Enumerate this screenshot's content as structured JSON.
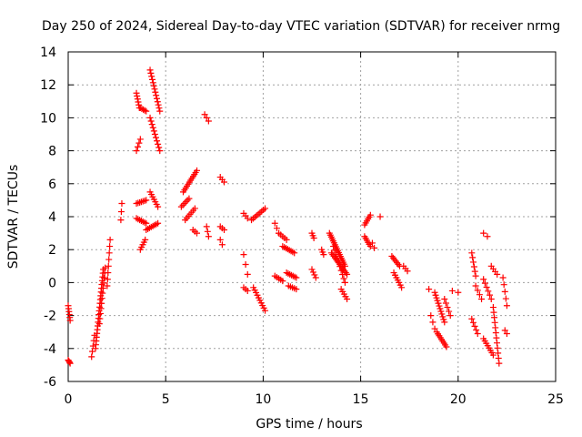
{
  "chart_data": {
    "type": "scatter",
    "title": "Day 250 of 2024, Sidereal Day-to-day VTEC variation (SDTVAR) for receiver nrmg",
    "xlabel": "GPS time / hours",
    "ylabel": "SDTVAR / TECUs",
    "xlim": [
      0,
      25
    ],
    "ylim": [
      -6,
      14
    ],
    "xticks": [
      0,
      5,
      10,
      15,
      20,
      25
    ],
    "yticks": [
      -6,
      -4,
      -2,
      0,
      2,
      4,
      6,
      8,
      10,
      12,
      14
    ],
    "xtick_labels": [
      "0",
      "5",
      "10",
      "15",
      "20",
      "25"
    ],
    "ytick_labels": [
      "-6",
      "-4",
      "-2",
      "0",
      "2",
      "4",
      "6",
      "8",
      "10",
      "12",
      "14"
    ],
    "grid": true,
    "marker": "+",
    "marker_color": "#ff0000",
    "series": [
      {
        "name": "SDTVAR",
        "segments": [
          {
            "x0": 0.0,
            "x1": 0.1,
            "y0": -1.4,
            "y1": -2.3,
            "n": 6
          },
          {
            "x0": 0.0,
            "x1": 0.1,
            "y0": -4.7,
            "y1": -4.9,
            "n": 4
          },
          {
            "x0": 1.2,
            "x1": 1.35,
            "y0": -4.5,
            "y1": -3.2,
            "n": 5
          },
          {
            "x0": 1.4,
            "x1": 1.8,
            "y0": -4.0,
            "y1": 0.8,
            "n": 22
          },
          {
            "x0": 1.6,
            "x1": 1.9,
            "y0": -2.5,
            "y1": 0.9,
            "n": 12
          },
          {
            "x0": 2.0,
            "x1": 2.15,
            "y0": -0.2,
            "y1": 2.6,
            "n": 8
          },
          {
            "x0": 2.7,
            "x1": 2.75,
            "y0": 3.8,
            "y1": 4.8,
            "n": 3
          },
          {
            "x0": 3.5,
            "x1": 3.65,
            "y0": 11.5,
            "y1": 10.6,
            "n": 6
          },
          {
            "x0": 3.7,
            "x1": 4.0,
            "y0": 10.6,
            "y1": 10.4,
            "n": 5
          },
          {
            "x0": 3.5,
            "x1": 3.7,
            "y0": 8.0,
            "y1": 8.7,
            "n": 4
          },
          {
            "x0": 3.5,
            "x1": 4.0,
            "y0": 4.8,
            "y1": 5.0,
            "n": 7
          },
          {
            "x0": 3.5,
            "x1": 4.0,
            "y0": 3.9,
            "y1": 3.6,
            "n": 7
          },
          {
            "x0": 3.7,
            "x1": 3.95,
            "y0": 2.0,
            "y1": 2.6,
            "n": 5
          },
          {
            "x0": 4.0,
            "x1": 4.6,
            "y0": 3.2,
            "y1": 3.6,
            "n": 8
          },
          {
            "x0": 4.2,
            "x1": 4.7,
            "y0": 12.9,
            "y1": 10.4,
            "n": 14
          },
          {
            "x0": 4.2,
            "x1": 4.7,
            "y0": 10.0,
            "y1": 8.0,
            "n": 11
          },
          {
            "x0": 4.2,
            "x1": 4.6,
            "y0": 5.5,
            "y1": 4.6,
            "n": 7
          },
          {
            "x0": 5.8,
            "x1": 6.2,
            "y0": 4.6,
            "y1": 5.1,
            "n": 6
          },
          {
            "x0": 5.9,
            "x1": 6.6,
            "y0": 5.5,
            "y1": 6.8,
            "n": 12
          },
          {
            "x0": 6.0,
            "x1": 6.5,
            "y0": 3.8,
            "y1": 4.5,
            "n": 7
          },
          {
            "x0": 6.4,
            "x1": 6.6,
            "y0": 3.2,
            "y1": 3.0,
            "n": 3
          },
          {
            "x0": 7.0,
            "x1": 7.2,
            "y0": 10.2,
            "y1": 9.8,
            "n": 3
          },
          {
            "x0": 7.1,
            "x1": 7.2,
            "y0": 3.4,
            "y1": 2.8,
            "n": 3
          },
          {
            "x0": 7.8,
            "x1": 8.0,
            "y0": 6.4,
            "y1": 6.1,
            "n": 3
          },
          {
            "x0": 7.8,
            "x1": 8.0,
            "y0": 3.4,
            "y1": 3.2,
            "n": 3
          },
          {
            "x0": 7.8,
            "x1": 7.9,
            "y0": 2.6,
            "y1": 2.3,
            "n": 2
          },
          {
            "x0": 9.0,
            "x1": 9.2,
            "y0": 4.2,
            "y1": 3.9,
            "n": 3
          },
          {
            "x0": 9.0,
            "x1": 9.2,
            "y0": 1.7,
            "y1": 0.5,
            "n": 3
          },
          {
            "x0": 9.0,
            "x1": 9.2,
            "y0": -0.3,
            "y1": -0.5,
            "n": 3
          },
          {
            "x0": 9.4,
            "x1": 10.1,
            "y0": 3.8,
            "y1": 4.5,
            "n": 9
          },
          {
            "x0": 9.5,
            "x1": 10.1,
            "y0": -0.3,
            "y1": -1.7,
            "n": 10
          },
          {
            "x0": 10.6,
            "x1": 10.8,
            "y0": 3.6,
            "y1": 3.0,
            "n": 3
          },
          {
            "x0": 10.8,
            "x1": 11.2,
            "y0": 3.0,
            "y1": 2.6,
            "n": 5
          },
          {
            "x0": 10.6,
            "x1": 11.0,
            "y0": 0.4,
            "y1": 0.1,
            "n": 5
          },
          {
            "x0": 11.0,
            "x1": 11.6,
            "y0": 2.2,
            "y1": 1.8,
            "n": 8
          },
          {
            "x0": 11.2,
            "x1": 11.7,
            "y0": 0.6,
            "y1": 0.3,
            "n": 7
          },
          {
            "x0": 11.3,
            "x1": 11.7,
            "y0": -0.2,
            "y1": -0.4,
            "n": 5
          },
          {
            "x0": 12.5,
            "x1": 12.6,
            "y0": 3.0,
            "y1": 2.7,
            "n": 3
          },
          {
            "x0": 12.5,
            "x1": 12.7,
            "y0": 0.8,
            "y1": 0.3,
            "n": 4
          },
          {
            "x0": 13.0,
            "x1": 13.1,
            "y0": 2.0,
            "y1": 1.7,
            "n": 3
          },
          {
            "x0": 13.4,
            "x1": 14.2,
            "y0": 3.0,
            "y1": 1.0,
            "n": 18
          },
          {
            "x0": 13.5,
            "x1": 14.3,
            "y0": 1.8,
            "y1": 0.5,
            "n": 14
          },
          {
            "x0": 13.6,
            "x1": 14.2,
            "y0": 2.2,
            "y1": 0.0,
            "n": 10
          },
          {
            "x0": 14.0,
            "x1": 14.3,
            "y0": -0.4,
            "y1": -1.0,
            "n": 5
          },
          {
            "x0": 15.2,
            "x1": 15.5,
            "y0": 3.5,
            "y1": 4.1,
            "n": 6
          },
          {
            "x0": 15.2,
            "x1": 15.5,
            "y0": 2.8,
            "y1": 2.2,
            "n": 6
          },
          {
            "x0": 15.6,
            "x1": 15.7,
            "y0": 2.4,
            "y1": 2.1,
            "n": 2
          },
          {
            "x0": 16.0,
            "x1": 16.1,
            "y0": 4.0,
            "y1": 4.0,
            "n": 1
          },
          {
            "x0": 16.6,
            "x1": 17.0,
            "y0": 1.6,
            "y1": 1.0,
            "n": 7
          },
          {
            "x0": 16.7,
            "x1": 17.1,
            "y0": 0.6,
            "y1": -0.3,
            "n": 7
          },
          {
            "x0": 17.2,
            "x1": 17.4,
            "y0": 1.0,
            "y1": 0.7,
            "n": 3
          },
          {
            "x0": 18.5,
            "x1": 18.6,
            "y0": -0.4,
            "y1": -0.4,
            "n": 1
          },
          {
            "x0": 18.6,
            "x1": 18.8,
            "y0": -2.0,
            "y1": -2.8,
            "n": 3
          },
          {
            "x0": 18.8,
            "x1": 19.3,
            "y0": -0.6,
            "y1": -2.4,
            "n": 12
          },
          {
            "x0": 18.9,
            "x1": 19.4,
            "y0": -3.0,
            "y1": -3.9,
            "n": 9
          },
          {
            "x0": 19.3,
            "x1": 19.6,
            "y0": -1.0,
            "y1": -2.0,
            "n": 5
          },
          {
            "x0": 19.7,
            "x1": 20.0,
            "y0": -0.5,
            "y1": -0.6,
            "n": 2
          },
          {
            "x0": 20.7,
            "x1": 20.9,
            "y0": 1.8,
            "y1": 0.4,
            "n": 6
          },
          {
            "x0": 20.7,
            "x1": 21.0,
            "y0": -2.2,
            "y1": -3.1,
            "n": 5
          },
          {
            "x0": 20.9,
            "x1": 21.2,
            "y0": -0.2,
            "y1": -1.0,
            "n": 4
          },
          {
            "x0": 21.3,
            "x1": 21.5,
            "y0": 3.0,
            "y1": 2.8,
            "n": 2
          },
          {
            "x0": 21.3,
            "x1": 21.7,
            "y0": 0.2,
            "y1": -1.0,
            "n": 6
          },
          {
            "x0": 21.3,
            "x1": 21.8,
            "y0": -3.4,
            "y1": -4.4,
            "n": 8
          },
          {
            "x0": 21.7,
            "x1": 22.0,
            "y0": 1.0,
            "y1": 0.5,
            "n": 4
          },
          {
            "x0": 21.8,
            "x1": 22.1,
            "y0": -1.5,
            "y1": -4.9,
            "n": 12
          },
          {
            "x0": 22.3,
            "x1": 22.5,
            "y0": 0.3,
            "y1": -1.4,
            "n": 5
          },
          {
            "x0": 22.4,
            "x1": 22.5,
            "y0": -2.9,
            "y1": -3.1,
            "n": 2
          }
        ]
      }
    ]
  }
}
